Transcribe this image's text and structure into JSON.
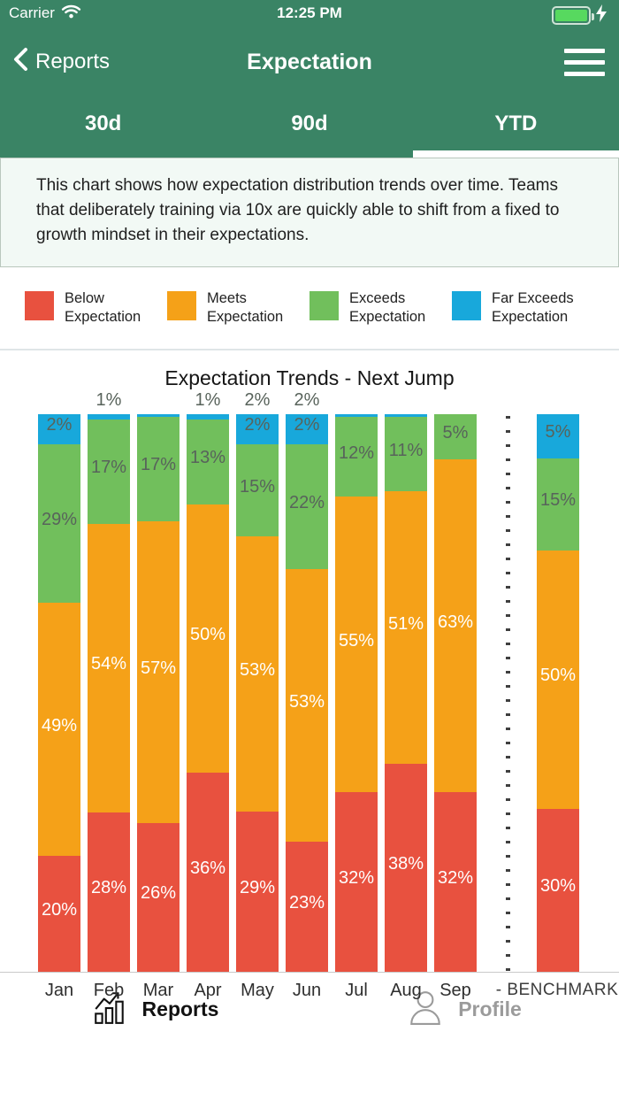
{
  "status_bar": {
    "carrier": "Carrier",
    "time": "12:25 PM"
  },
  "nav": {
    "back_label": "Reports",
    "title": "Expectation"
  },
  "tabs": [
    {
      "label": "30d",
      "active": false
    },
    {
      "label": "90d",
      "active": false
    },
    {
      "label": "YTD",
      "active": true
    }
  ],
  "description": "This chart shows how expectation distribution trends over time. Teams that deliberately training via 10x are quickly able to shift from a fixed to growth mindset in their expectations.",
  "legend": [
    {
      "line1": "Below",
      "line2": "Expectation",
      "color": "#e8513f"
    },
    {
      "line1": "Meets",
      "line2": "Expectation",
      "color": "#f5a118"
    },
    {
      "line1": "Exceeds",
      "line2": "Expectation",
      "color": "#71bf5c"
    },
    {
      "line1": "Far Exceeds",
      "line2": "Expectation",
      "color": "#18a8db"
    }
  ],
  "chart_data": {
    "type": "stacked-bar-percent",
    "title": "Expectation Trends - Next Jump",
    "categories": [
      "Jan",
      "Feb",
      "Mar",
      "Apr",
      "May",
      "Jun",
      "Jul",
      "Aug",
      "Sep"
    ],
    "series": [
      {
        "name": "Below Expectation",
        "color": "#e8513f",
        "label_color": "#ffffff",
        "values": [
          20,
          28,
          26,
          36,
          29,
          23,
          32,
          38,
          32
        ]
      },
      {
        "name": "Meets Expectation",
        "color": "#f5a118",
        "label_color": "#ffffff",
        "values": [
          49,
          54,
          57,
          50,
          53,
          53,
          55,
          51,
          63
        ]
      },
      {
        "name": "Exceeds Expectation",
        "color": "#71bf5c",
        "label_color": "#58635b",
        "values": [
          29,
          17,
          17,
          13,
          15,
          22,
          12,
          11,
          5
        ]
      },
      {
        "name": "Far Exceeds Expectation",
        "color": "#18a8db",
        "label_color": "#58635b",
        "values": [
          2,
          1,
          0.5,
          1,
          2,
          2,
          0.5,
          0.5,
          0
        ]
      }
    ],
    "labels_above_bar": {
      "Feb": "1%",
      "Apr": "1%",
      "May": "2%",
      "Jun": "2%"
    },
    "benchmark": {
      "label": "- BENCHMARK",
      "values": [
        30,
        50,
        15,
        5
      ]
    },
    "ylim": [
      0,
      100
    ],
    "value_suffix": "%",
    "legend_position": "top",
    "grid": false
  },
  "bottom_nav": [
    {
      "label": "Reports",
      "active": true
    },
    {
      "label": "Profile",
      "active": false
    }
  ]
}
